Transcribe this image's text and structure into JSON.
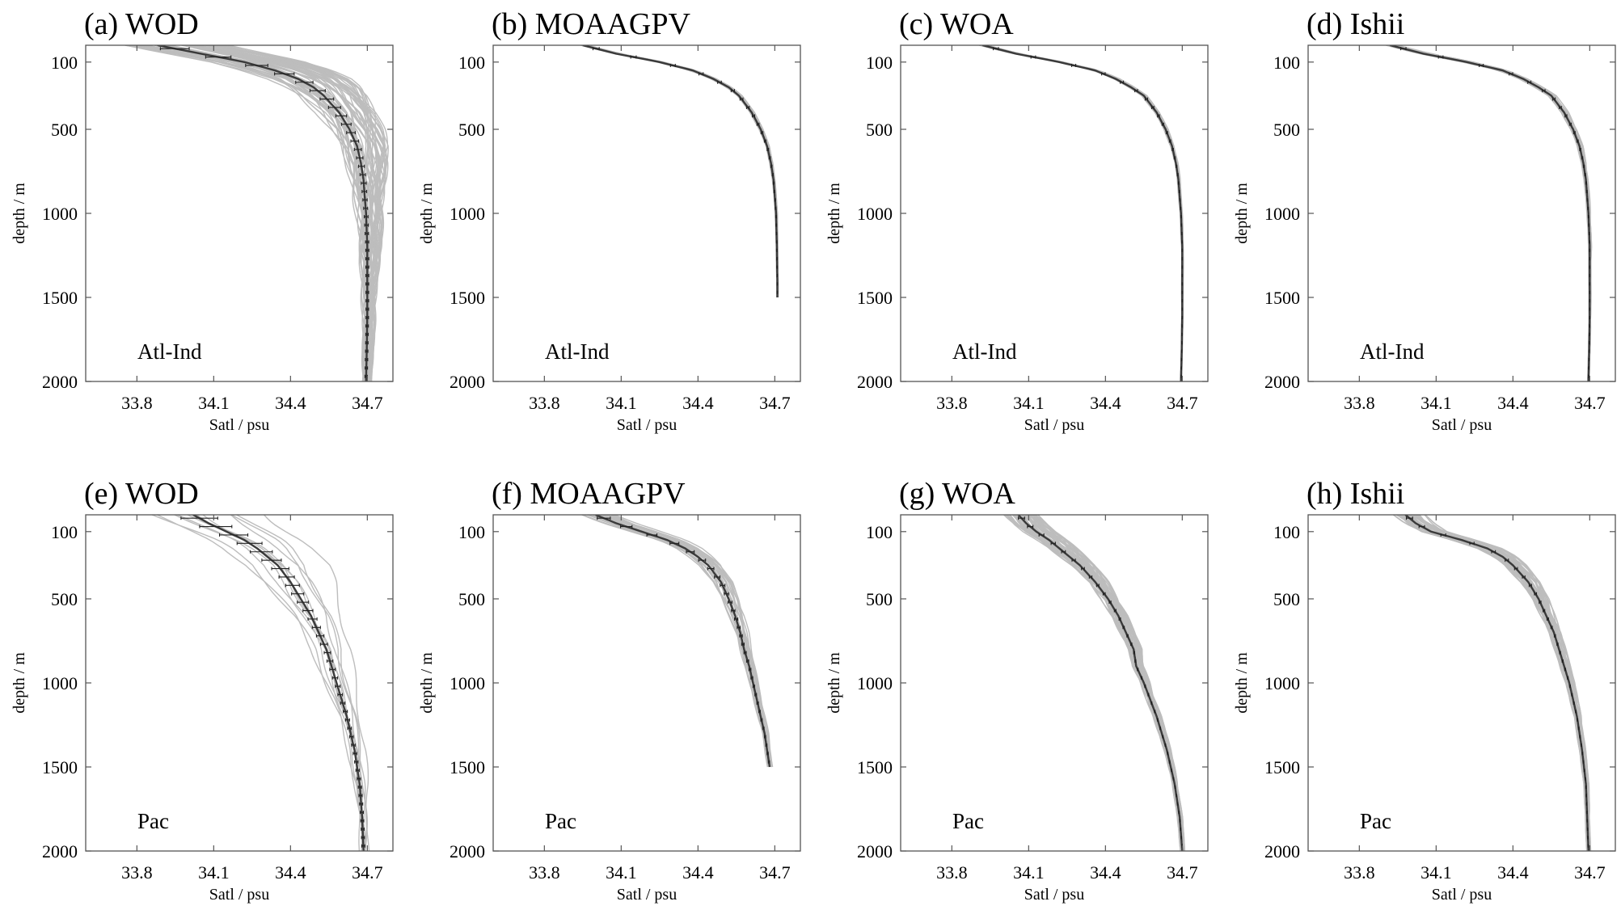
{
  "chart_data": [
    {
      "panel": "a",
      "type": "line",
      "title": "(a) WOD",
      "region": "Atl-Ind",
      "xlabel": "Satl / psu",
      "ylabel": "depth  /  m",
      "xlim": [
        33.6,
        34.8
      ],
      "ylim": [
        2000,
        0
      ],
      "y_reversed": true,
      "xticks": [
        "33.8",
        "34.1",
        "34.4",
        "34.7"
      ],
      "yticks": [
        "100",
        "500",
        "1000",
        "1500",
        "2000"
      ],
      "style": {
        "ensemble_count": 60,
        "spread_scale": 3.2,
        "skew": 0.12,
        "errorbars": true,
        "err_scale": 0.55
      },
      "series": [
        {
          "depth": [
            0,
            50,
            100,
            150,
            200,
            250,
            300,
            400,
            500,
            600,
            700,
            800,
            900,
            1000,
            1200,
            1400,
            1600,
            1800,
            2000
          ],
          "values": [
            33.88,
            34.05,
            34.22,
            34.34,
            34.43,
            34.49,
            34.53,
            34.59,
            34.63,
            34.66,
            34.675,
            34.685,
            34.69,
            34.695,
            34.7,
            34.7,
            34.7,
            34.698,
            34.695
          ]
        }
      ]
    },
    {
      "panel": "b",
      "type": "line",
      "title": "(b) MOAAGPV",
      "region": "Atl-Ind",
      "xlabel": "Satl / psu",
      "ylabel": "depth  /  m",
      "xlim": [
        33.6,
        34.8
      ],
      "ylim": [
        2000,
        0
      ],
      "y_reversed": true,
      "xticks": [
        "33.8",
        "34.1",
        "34.4",
        "34.7"
      ],
      "yticks": [
        "100",
        "500",
        "1000",
        "1500",
        "2000"
      ],
      "style": {
        "ensemble_count": 20,
        "spread_scale": 0.5,
        "skew": 0.05,
        "errorbars": true,
        "err_scale": 0.12
      },
      "series": [
        {
          "depth": [
            0,
            50,
            100,
            150,
            200,
            250,
            300,
            400,
            500,
            600,
            700,
            800,
            900,
            1000,
            1200,
            1400,
            1500
          ],
          "values": [
            33.95,
            34.08,
            34.25,
            34.38,
            34.46,
            34.52,
            34.56,
            34.61,
            34.645,
            34.67,
            34.685,
            34.695,
            34.7,
            34.705,
            34.708,
            34.71,
            34.71
          ]
        }
      ]
    },
    {
      "panel": "c",
      "type": "line",
      "title": "(c) WOA",
      "region": "Atl-Ind",
      "xlabel": "Satl / psu",
      "ylabel": "depth  /  m",
      "xlim": [
        33.6,
        34.8
      ],
      "ylim": [
        2000,
        0
      ],
      "y_reversed": true,
      "xticks": [
        "33.8",
        "34.1",
        "34.4",
        "34.7"
      ],
      "yticks": [
        "100",
        "500",
        "1000",
        "1500",
        "2000"
      ],
      "style": {
        "ensemble_count": 20,
        "spread_scale": 0.6,
        "skew": 0.04,
        "errorbars": true,
        "err_scale": 0.1
      },
      "series": [
        {
          "depth": [
            0,
            50,
            100,
            150,
            200,
            250,
            300,
            400,
            500,
            600,
            700,
            800,
            900,
            1000,
            1200,
            1400,
            1600,
            1800,
            2000
          ],
          "values": [
            33.92,
            34.05,
            34.22,
            34.36,
            34.44,
            34.5,
            34.55,
            34.6,
            34.635,
            34.66,
            34.675,
            34.685,
            34.69,
            34.695,
            34.7,
            34.7,
            34.7,
            34.698,
            34.695
          ]
        }
      ]
    },
    {
      "panel": "d",
      "type": "line",
      "title": "(d) Ishii",
      "region": "Atl-Ind",
      "xlabel": "Satl / psu",
      "ylabel": "depth  /  m",
      "xlim": [
        33.6,
        34.8
      ],
      "ylim": [
        2000,
        0
      ],
      "y_reversed": true,
      "xticks": [
        "33.8",
        "34.1",
        "34.4",
        "34.7"
      ],
      "yticks": [
        "100",
        "500",
        "1000",
        "1500",
        "2000"
      ],
      "style": {
        "ensemble_count": 24,
        "spread_scale": 0.8,
        "skew": 0.05,
        "errorbars": true,
        "err_scale": 0.1
      },
      "series": [
        {
          "depth": [
            0,
            50,
            100,
            150,
            200,
            250,
            300,
            400,
            500,
            600,
            700,
            800,
            900,
            1000,
            1200,
            1400,
            1600,
            1800,
            2000
          ],
          "values": [
            33.92,
            34.05,
            34.22,
            34.36,
            34.44,
            34.5,
            34.55,
            34.6,
            34.635,
            34.66,
            34.675,
            34.685,
            34.69,
            34.695,
            34.7,
            34.7,
            34.7,
            34.698,
            34.695
          ]
        }
      ]
    },
    {
      "panel": "e",
      "type": "line",
      "title": "(e) WOD",
      "region": "Pac",
      "xlabel": "Satl / psu",
      "ylabel": "depth  /  m",
      "xlim": [
        33.6,
        34.8
      ],
      "ylim": [
        2000,
        0
      ],
      "y_reversed": true,
      "xticks": [
        "33.8",
        "34.1",
        "34.4",
        "34.7"
      ],
      "yticks": [
        "100",
        "500",
        "1000",
        "1500",
        "2000"
      ],
      "style": {
        "ensemble_count": 12,
        "spread_scale": 2.4,
        "skew": 0.2,
        "errorbars": true,
        "err_scale": 0.7
      },
      "series": [
        {
          "depth": [
            0,
            50,
            100,
            150,
            200,
            250,
            300,
            400,
            500,
            600,
            700,
            800,
            900,
            1000,
            1200,
            1400,
            1600,
            1800,
            2000
          ],
          "values": [
            34.02,
            34.08,
            34.15,
            34.22,
            34.27,
            34.31,
            34.35,
            34.4,
            34.44,
            34.48,
            34.51,
            34.54,
            34.56,
            34.58,
            34.62,
            34.65,
            34.67,
            34.68,
            34.685
          ]
        }
      ]
    },
    {
      "panel": "f",
      "type": "line",
      "title": "(f) MOAAGPV",
      "region": "Pac",
      "xlabel": "Satl / psu",
      "ylabel": "depth  /  m",
      "xlim": [
        33.6,
        34.8
      ],
      "ylim": [
        2000,
        0
      ],
      "y_reversed": true,
      "xticks": [
        "33.8",
        "34.1",
        "34.4",
        "34.7"
      ],
      "yticks": [
        "100",
        "500",
        "1000",
        "1500",
        "2000"
      ],
      "style": {
        "ensemble_count": 22,
        "spread_scale": 1.3,
        "skew": 0.1,
        "errorbars": true,
        "err_scale": 0.25
      },
      "series": [
        {
          "depth": [
            0,
            50,
            100,
            150,
            200,
            250,
            300,
            400,
            500,
            600,
            700,
            800,
            900,
            1000,
            1100,
            1200,
            1300,
            1400,
            1500
          ],
          "values": [
            34.0,
            34.08,
            34.18,
            34.28,
            34.35,
            34.4,
            34.44,
            34.49,
            34.52,
            34.545,
            34.565,
            34.58,
            34.6,
            34.615,
            34.63,
            34.645,
            34.66,
            34.67,
            34.68
          ]
        }
      ]
    },
    {
      "panel": "g",
      "type": "line",
      "title": "(g) WOA",
      "region": "Pac",
      "xlabel": "Satl / psu",
      "ylabel": "depth  /  m",
      "xlim": [
        33.6,
        34.8
      ],
      "ylim": [
        2000,
        0
      ],
      "y_reversed": true,
      "xticks": [
        "33.8",
        "34.1",
        "34.4",
        "34.7"
      ],
      "yticks": [
        "100",
        "500",
        "1000",
        "1500",
        "2000"
      ],
      "style": {
        "ensemble_count": 55,
        "spread_scale": 2.2,
        "skew": 0.05,
        "errorbars": true,
        "err_scale": 0.12
      },
      "series": [
        {
          "depth": [
            0,
            50,
            100,
            150,
            200,
            250,
            300,
            400,
            500,
            600,
            700,
            800,
            900,
            1000,
            1200,
            1400,
            1600,
            1800,
            2000
          ],
          "values": [
            34.06,
            34.09,
            34.13,
            34.18,
            34.22,
            34.26,
            34.3,
            34.36,
            34.41,
            34.45,
            34.48,
            34.51,
            34.52,
            34.55,
            34.6,
            34.64,
            34.67,
            34.69,
            34.7
          ]
        }
      ]
    },
    {
      "panel": "h",
      "type": "line",
      "title": "(h) Ishii",
      "region": "Pac",
      "xlabel": "Satl / psu",
      "ylabel": "depth  /  m",
      "xlim": [
        33.6,
        34.8
      ],
      "ylim": [
        2000,
        0
      ],
      "y_reversed": true,
      "xticks": [
        "33.8",
        "34.1",
        "34.4",
        "34.7"
      ],
      "yticks": [
        "100",
        "500",
        "1000",
        "1500",
        "2000"
      ],
      "style": {
        "ensemble_count": 50,
        "spread_scale": 1.9,
        "skew": 0.05,
        "errorbars": true,
        "err_scale": 0.12
      },
      "series": [
        {
          "depth": [
            0,
            50,
            100,
            150,
            200,
            250,
            300,
            400,
            500,
            600,
            700,
            800,
            900,
            1000,
            1200,
            1400,
            1600,
            1800,
            2000
          ],
          "values": [
            33.98,
            34.02,
            34.08,
            34.2,
            34.3,
            34.36,
            34.4,
            34.46,
            34.5,
            34.53,
            34.56,
            34.58,
            34.6,
            34.62,
            34.65,
            34.67,
            34.685,
            34.69,
            34.695
          ]
        }
      ]
    }
  ],
  "colors": {
    "ensemble": "#bdbdbd",
    "mean": "#3a3a3a",
    "errorbar": "#222222",
    "frame": "#555555"
  }
}
